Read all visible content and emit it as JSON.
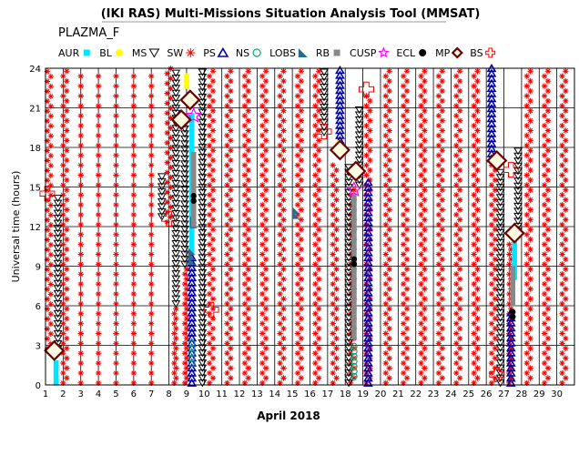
{
  "title": "(IKI RAS) Multi-Missions Situation Analysis Tool (MMSAT)",
  "subtitle": "PLAZMA_F",
  "chart_data": {
    "type": "scatter",
    "xlabel": "April 2018",
    "ylabel": "Universal time (hours)",
    "xlim": [
      1,
      31
    ],
    "ylim": [
      0,
      24
    ],
    "x_ticks": [
      "1",
      "2",
      "3",
      "4",
      "5",
      "6",
      "7",
      "8",
      "9",
      "10",
      "11",
      "12",
      "13",
      "14",
      "15",
      "16",
      "17",
      "18",
      "19",
      "20",
      "21",
      "22",
      "23",
      "24",
      "25",
      "26",
      "27",
      "28",
      "29",
      "30"
    ],
    "y_ticks": [
      "0",
      "3",
      "6",
      "9",
      "12",
      "15",
      "18",
      "21",
      "24"
    ],
    "grid": true,
    "legend_placement": "top",
    "legend": [
      {
        "label": "AUR",
        "marker": "square",
        "color": "#00e5ff"
      },
      {
        "label": "BL",
        "marker": "circle",
        "color": "#ffff00"
      },
      {
        "label": "MS",
        "marker": "triangle-down",
        "color": "#000000"
      },
      {
        "label": "SW",
        "marker": "asterisk",
        "color": "#ff0000"
      },
      {
        "label": "PS",
        "marker": "triangle-up",
        "color": "#0000aa"
      },
      {
        "label": "NS",
        "marker": "ring",
        "color": "#00aa77"
      },
      {
        "label": "LOBS",
        "marker": "wedge",
        "color": "#2e6a8a"
      },
      {
        "label": "RB",
        "marker": "square",
        "color": "#888888"
      },
      {
        "label": "CUSP",
        "marker": "star",
        "color": "#ff00ff"
      },
      {
        "label": "ECL",
        "marker": "dot",
        "color": "#000000"
      },
      {
        "label": "MP",
        "marker": "diamond",
        "color": "#6b0000"
      },
      {
        "label": "BS",
        "marker": "cross",
        "color": "#ff0000"
      }
    ],
    "series": [
      {
        "name": "SW",
        "segments": [
          [
            1.1,
            1.3,
            2.6,
            24
          ],
          [
            2.0,
            2.2,
            0,
            24
          ],
          [
            3,
            3,
            0,
            24
          ],
          [
            4,
            4,
            0,
            24
          ],
          [
            5,
            5,
            0,
            24
          ],
          [
            6,
            6,
            0,
            24
          ],
          [
            7,
            7,
            0,
            24
          ],
          [
            7.9,
            8.1,
            12.2,
            24
          ],
          [
            8.3,
            8.4,
            0,
            6
          ],
          [
            8.9,
            9.0,
            0,
            9
          ],
          [
            10.3,
            10.5,
            0,
            24
          ],
          [
            11.3,
            11.5,
            0,
            24
          ],
          [
            12.3,
            12.5,
            0,
            24
          ],
          [
            13.3,
            13.5,
            0,
            24
          ],
          [
            14.3,
            14.5,
            0,
            24
          ],
          [
            15.3,
            15.5,
            0,
            24
          ],
          [
            16.3,
            16.5,
            0,
            24
          ],
          [
            17.3,
            17.5,
            0,
            17
          ],
          [
            18.3,
            18.5,
            0,
            14.8
          ],
          [
            19.2,
            19.4,
            0,
            22
          ],
          [
            20.3,
            20.5,
            0,
            24
          ],
          [
            21.3,
            21.5,
            0,
            24
          ],
          [
            22.3,
            22.5,
            0,
            24
          ],
          [
            23.3,
            23.5,
            0,
            24
          ],
          [
            24.3,
            24.5,
            0,
            24
          ],
          [
            25.3,
            25.5,
            0,
            24
          ],
          [
            26.3,
            26.5,
            0,
            17
          ],
          [
            27.3,
            27.4,
            0,
            11
          ],
          [
            28.3,
            28.5,
            0,
            24
          ],
          [
            29.3,
            29.5,
            0,
            24
          ],
          [
            30.3,
            30.5,
            0,
            24
          ]
        ]
      },
      {
        "name": "MS",
        "segments": [
          [
            1.7,
            1.7,
            2.6,
            14.5
          ],
          [
            7.6,
            7.6,
            12.6,
            16
          ],
          [
            8.4,
            8.4,
            6,
            24
          ],
          [
            8.9,
            8.9,
            9,
            20
          ],
          [
            9.9,
            9.9,
            0,
            24
          ],
          [
            16.8,
            16.8,
            19,
            24
          ],
          [
            18.2,
            18.2,
            0,
            16.5
          ],
          [
            18.8,
            18.8,
            15,
            21
          ],
          [
            26.8,
            26.8,
            0,
            16.2
          ],
          [
            27.8,
            27.8,
            11.5,
            18
          ]
        ]
      },
      {
        "name": "PS",
        "segments": [
          [
            9.3,
            9.3,
            0,
            10
          ],
          [
            17.7,
            17.7,
            18,
            24
          ],
          [
            19.3,
            19.3,
            0,
            15.5
          ],
          [
            26.3,
            26.3,
            17,
            24
          ],
          [
            27.4,
            27.4,
            0,
            5.6
          ]
        ]
      },
      {
        "name": "AUR",
        "segments": [
          [
            1.6,
            1.6,
            0,
            1.8
          ],
          [
            9.3,
            9.3,
            10,
            20.5
          ],
          [
            27.6,
            27.6,
            8,
            11.2
          ]
        ]
      },
      {
        "name": "BL",
        "segments": [
          [
            9.0,
            9.0,
            22.5,
            23.5
          ],
          [
            17.6,
            17.6,
            17.8,
            18.4
          ]
        ]
      },
      {
        "name": "NS",
        "segments": [
          [
            9.3,
            9.3,
            1.5,
            3.3
          ],
          [
            18.5,
            18.5,
            0.5,
            3.0
          ]
        ]
      },
      {
        "name": "LOBS",
        "segments": [
          [
            9.3,
            9.3,
            9.2,
            10.2
          ],
          [
            9.4,
            9.4,
            12.0,
            12.8
          ],
          [
            15.2,
            15.2,
            12.7,
            13.3
          ]
        ]
      },
      {
        "name": "RB",
        "segments": [
          [
            9.4,
            9.4,
            12.0,
            17.5
          ],
          [
            18.5,
            18.5,
            3.5,
            14.5
          ],
          [
            27.5,
            27.5,
            6.0,
            9.0
          ]
        ]
      },
      {
        "name": "ECL",
        "segments": [
          [
            9.4,
            9.4,
            13.8,
            14.5
          ],
          [
            18.5,
            18.5,
            9.0,
            9.8
          ],
          [
            27.5,
            27.5,
            5.0,
            5.8
          ]
        ]
      },
      {
        "name": "CUSP",
        "points": [
          [
            9.4,
            20.4
          ],
          [
            18.5,
            14.8
          ]
        ]
      },
      {
        "name": "MP",
        "points": [
          [
            1.5,
            2.6
          ],
          [
            8.7,
            20.1
          ],
          [
            9.2,
            21.6
          ],
          [
            17.7,
            17.8
          ],
          [
            18.6,
            16.2
          ],
          [
            26.6,
            17.0
          ],
          [
            27.6,
            11.5
          ]
        ]
      },
      {
        "name": "BS",
        "points": [
          [
            1.1,
            14.5
          ],
          [
            8.0,
            12.6
          ],
          [
            10.4,
            5.7
          ],
          [
            16.8,
            19.2
          ],
          [
            19.2,
            22.4
          ],
          [
            26.6,
            0.8
          ],
          [
            27.4,
            16.3
          ]
        ]
      }
    ]
  }
}
